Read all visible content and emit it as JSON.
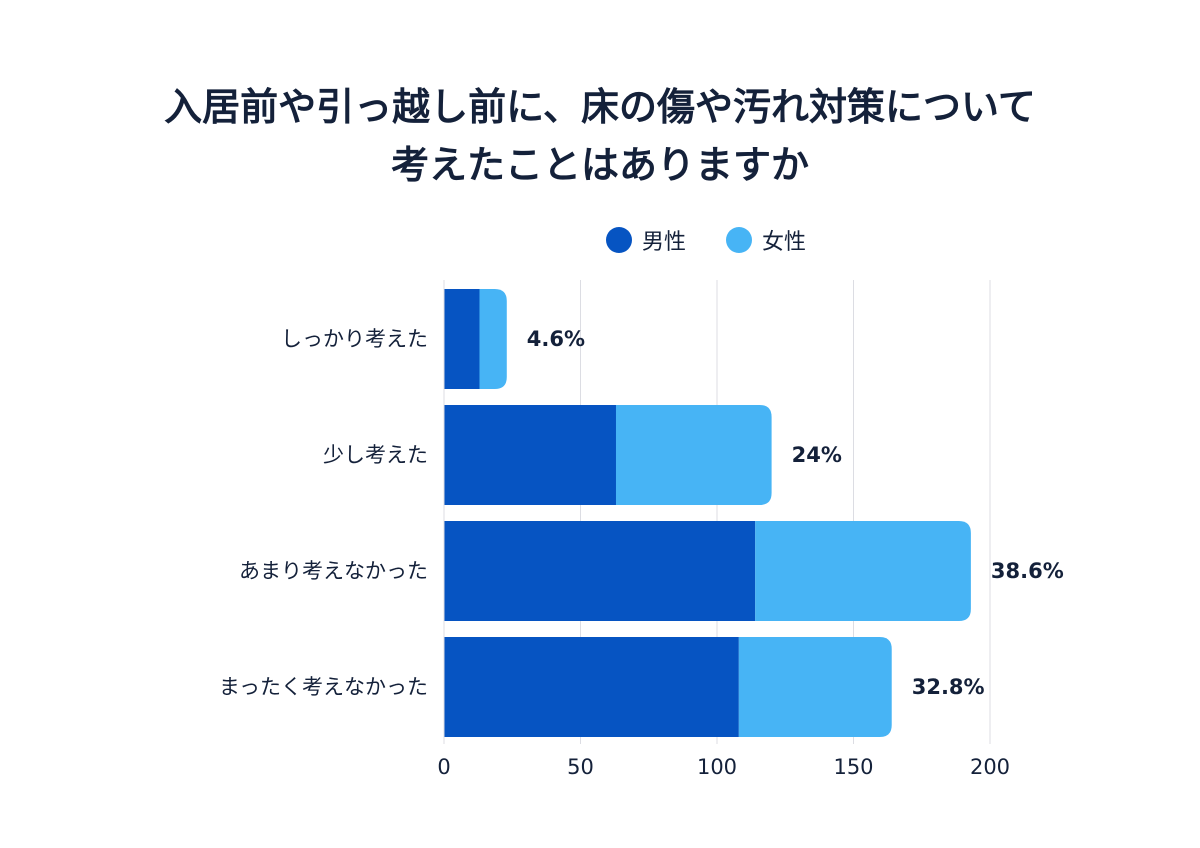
{
  "title": {
    "line1": "入居前や引っ越し前に、床の傷や汚れ対策について",
    "line2": "考えたことはありますか"
  },
  "legend": [
    {
      "label": "男性",
      "color": "#0654c2"
    },
    {
      "label": "女性",
      "color": "#47b4f5"
    }
  ],
  "chart_data": {
    "type": "bar",
    "orientation": "horizontal",
    "stacked": true,
    "title": "入居前や引っ越し前に、床の傷や汚れ対策について考えたことはありますか",
    "categories": [
      "しっかり考えた",
      "少し考えた",
      "あまり考えなかった",
      "まったく考えなかった"
    ],
    "series": [
      {
        "name": "男性",
        "color": "#0654c2",
        "values": [
          13,
          63,
          114,
          108
        ]
      },
      {
        "name": "女性",
        "color": "#47b4f5",
        "values": [
          10,
          57,
          79,
          56
        ]
      }
    ],
    "data_labels": [
      "4.6%",
      "24%",
      "38.6%",
      "32.8%"
    ],
    "xlim": [
      0,
      200
    ],
    "xticks": [
      0,
      50,
      100,
      150,
      200
    ],
    "grid": true,
    "legend_position": "top"
  }
}
